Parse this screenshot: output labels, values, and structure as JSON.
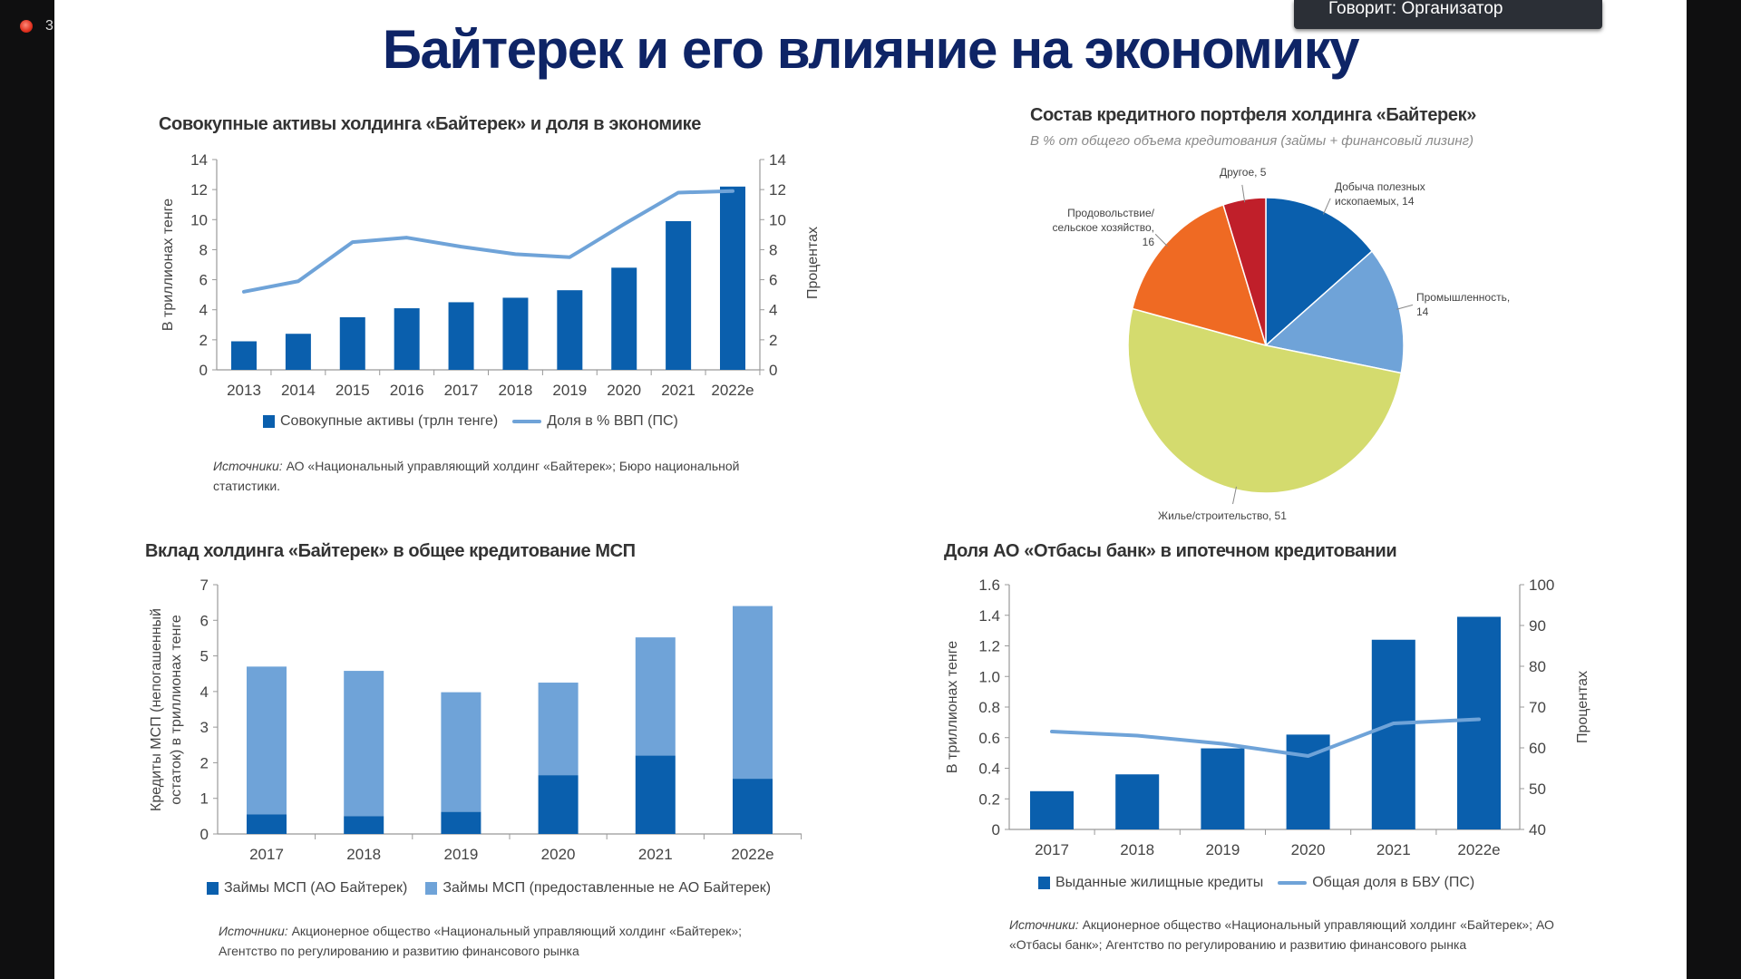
{
  "overlay": {
    "rec_count": "3",
    "speaker": "Говорит: Организатор"
  },
  "title": "Байтерек и его влияние на экономику",
  "colors": {
    "dark_blue": "#0a5fad",
    "light_blue": "#6fa3d8",
    "title": "#0e2466",
    "yellow": "#d4db6e",
    "orange": "#ef6a23",
    "red": "#c01f2a"
  },
  "chart_data": [
    {
      "type": "bar+line",
      "title": "Совокупные активы холдинга «Байтерек» и доля в экономике",
      "ylabel": "В триллионах тенге",
      "y2label": "Процентах",
      "categories": [
        "2013",
        "2014",
        "2015",
        "2016",
        "2017",
        "2018",
        "2019",
        "2020",
        "2021",
        "2022e"
      ],
      "ylim": [
        0,
        14
      ],
      "y2lim": [
        0,
        14
      ],
      "yticks": [
        "0",
        "2",
        "4",
        "6",
        "8",
        "10",
        "12",
        "14"
      ],
      "y2ticks": [
        "0",
        "2",
        "4",
        "6",
        "8",
        "10",
        "12",
        "14"
      ],
      "series": [
        {
          "name": "Совокупные активы (трлн тенге)",
          "kind": "bar",
          "axis": "left",
          "values": [
            1.9,
            2.4,
            3.5,
            4.1,
            4.5,
            4.8,
            5.3,
            6.8,
            9.9,
            12.2
          ]
        },
        {
          "name": "Доля в % ВВП (ПС)",
          "kind": "line",
          "axis": "right",
          "values": [
            5.2,
            5.9,
            8.5,
            8.8,
            8.2,
            7.7,
            7.5,
            9.7,
            11.8,
            11.9
          ]
        }
      ],
      "source_label": "Источники:",
      "source_lines": [
        " АО «Национальный управляющий холдинг «Байтерек»; Бюро национальной",
        "статистики."
      ]
    },
    {
      "type": "pie",
      "title": "Состав кредитного портфеля холдинга «Байтерек»",
      "subtitle": "В % от общего объема кредитования (займы + финансовый лизинг)",
      "slices": [
        {
          "label": [
            "Добыча полезных",
            "ископаемых, 14"
          ],
          "value": 14,
          "color": "#0a5fad"
        },
        {
          "label": [
            "Промышленность,",
            "14"
          ],
          "value": 14,
          "color": "#6fa3d8"
        },
        {
          "label": [
            "Жилье/строительство, 51"
          ],
          "value": 51,
          "color": "#d4db6e"
        },
        {
          "label": [
            "Продовольствие/",
            "сельское хозяйство,",
            "16"
          ],
          "value": 16,
          "color": "#ef6a23"
        },
        {
          "label": [
            "Другое, 5"
          ],
          "value": 5,
          "color": "#c01f2a"
        }
      ]
    },
    {
      "type": "stacked-bar",
      "title": "Вклад холдинга «Байтерек» в общее кредитование МСП",
      "ylabel": [
        "Кредиты МСП (непогашенный",
        "остаток) в триллионах тенге"
      ],
      "categories": [
        "2017",
        "2018",
        "2019",
        "2020",
        "2021",
        "2022e"
      ],
      "ylim": [
        0,
        7
      ],
      "yticks": [
        "0",
        "1",
        "2",
        "3",
        "4",
        "5",
        "6",
        "7"
      ],
      "series": [
        {
          "name": "Займы МСП (АО Байтерек)",
          "values": [
            0.55,
            0.5,
            0.62,
            1.65,
            2.2,
            1.55
          ]
        },
        {
          "name": "Займы МСП (предоставленные не АО Байтерек)",
          "values": [
            4.15,
            4.08,
            3.36,
            2.6,
            3.32,
            4.85
          ]
        }
      ],
      "source_label": "Источники:",
      "source_lines": [
        " Акционерное общество «Национальный управляющий холдинг «Байтерек»;",
        "Агентство по регулированию и развитию финансового рынка"
      ]
    },
    {
      "type": "bar+line",
      "title": "Доля АО «Отбасы банк» в ипотечном кредитовании",
      "ylabel": "В триллионах тенге",
      "y2label": "Процентах",
      "categories": [
        "2017",
        "2018",
        "2019",
        "2020",
        "2021",
        "2022e"
      ],
      "ylim": [
        0,
        1.6
      ],
      "y2lim": [
        40,
        100
      ],
      "yticks": [
        "0",
        "0.2",
        "0.4",
        "0.6",
        "0.8",
        "1.0",
        "1.2",
        "1.4",
        "1.6"
      ],
      "y2ticks": [
        "40",
        "50",
        "60",
        "70",
        "80",
        "90",
        "100"
      ],
      "series": [
        {
          "name": "Выданные жилищные кредиты",
          "kind": "bar",
          "axis": "left",
          "values": [
            0.25,
            0.36,
            0.53,
            0.62,
            1.24,
            1.39
          ]
        },
        {
          "name": "Общая доля в БВУ (ПС)",
          "kind": "line",
          "axis": "right",
          "values": [
            64,
            63,
            61,
            58,
            66,
            67
          ]
        }
      ],
      "source_label": "Источники:",
      "source_lines": [
        " Акционерное общество «Национальный управляющий холдинг «Байтерек»; АО",
        "«Отбасы банк»; Агентство по регулированию и развитию финансового рынка"
      ]
    }
  ]
}
